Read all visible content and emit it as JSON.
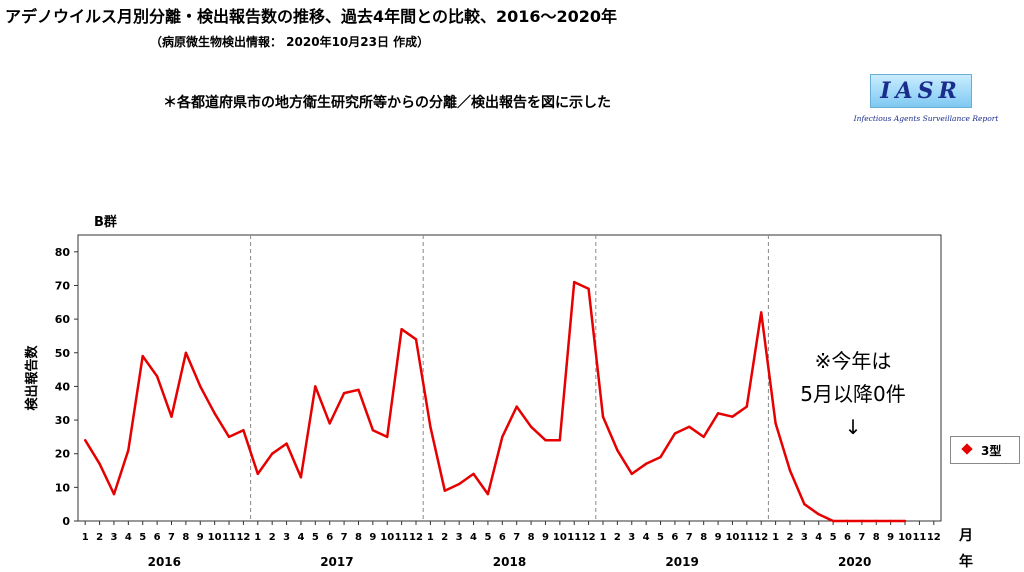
{
  "header": {
    "title": "アデノウイルス月別分離・検出報告数の推移、過去4年間との比較、2016～2020年",
    "subtitle": "（病原微生物検出情報： 2020年10月23日 作成）",
    "note": "＊各都道府県市の地方衛生研究所等からの分離／検出報告を図に示した"
  },
  "logo": {
    "text": "IASR",
    "subtitle": "Infectious Agents Surveillance Report"
  },
  "colors": {
    "series": "#e60000",
    "grid": "#888888"
  },
  "chart_data": {
    "type": "line",
    "title": "B群",
    "ylabel": "検出報告数",
    "xlabel_month": "月",
    "xlabel_year": "年",
    "ylim": [
      0,
      85
    ],
    "yticks": [
      0,
      10,
      20,
      30,
      40,
      50,
      60,
      70,
      80
    ],
    "grid": false,
    "legend_position": "right",
    "years": [
      "2016",
      "2017",
      "2018",
      "2019",
      "2020"
    ],
    "month_labels": [
      "1",
      "2",
      "3",
      "4",
      "5",
      "6",
      "7",
      "8",
      "9",
      "10",
      "11",
      "12"
    ],
    "annotation": {
      "lines": [
        "※今年は",
        "5月以降0件"
      ],
      "arrow": "↓"
    },
    "series": [
      {
        "name": "3型",
        "values": [
          24,
          17,
          8,
          21,
          49,
          43,
          31,
          50,
          40,
          32,
          25,
          27,
          14,
          20,
          23,
          13,
          40,
          29,
          38,
          39,
          27,
          25,
          57,
          54,
          28,
          9,
          11,
          14,
          8,
          25,
          34,
          28,
          24,
          24,
          71,
          69,
          31,
          21,
          14,
          17,
          19,
          26,
          28,
          25,
          32,
          31,
          34,
          62,
          29,
          15,
          5,
          2,
          0,
          0,
          0,
          0,
          0,
          0
        ]
      }
    ]
  }
}
